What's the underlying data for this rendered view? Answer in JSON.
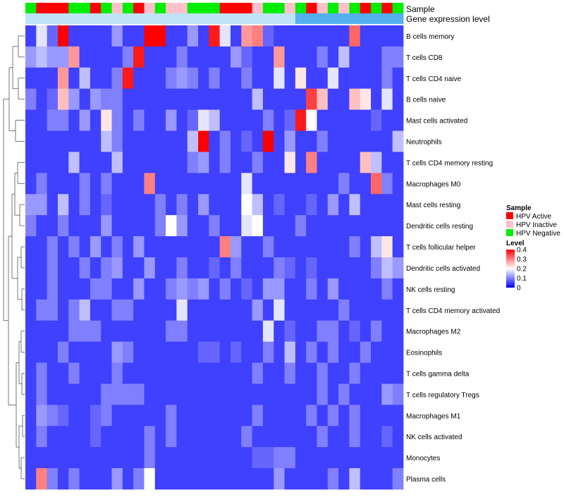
{
  "chart_data": {
    "type": "heatmap",
    "annotation_tracks": [
      "Sample",
      "Gene expression level"
    ],
    "sample_annotation": [
      "N",
      "A",
      "A",
      "A",
      "N",
      "N",
      "A",
      "N",
      "I",
      "N",
      "A",
      "I",
      "N",
      "I",
      "I",
      "N",
      "N",
      "N",
      "A",
      "A",
      "A",
      "I",
      "N",
      "N",
      "I",
      "N",
      "A",
      "I",
      "N",
      "I",
      "N",
      "A",
      "N",
      "A",
      "N"
    ],
    "gene_expression_annotation": [
      "low",
      "low",
      "low",
      "low",
      "low",
      "low",
      "low",
      "low",
      "low",
      "low",
      "low",
      "low",
      "low",
      "low",
      "low",
      "low",
      "low",
      "low",
      "low",
      "low",
      "low",
      "low",
      "low",
      "low",
      "low",
      "high",
      "high",
      "high",
      "high",
      "high",
      "high",
      "high",
      "high",
      "high",
      "high"
    ],
    "rows": [
      "B cells memory",
      "T cells CD8",
      "T cells CD4 naive",
      "B cells naive",
      "Mast cells activated",
      "Neutrophils",
      "T cells CD4 memory resting",
      "Macrophages M0",
      "Mast cells resting",
      "Dendritic cells resting",
      "T cells follicular helper",
      "Dendritic cells activated",
      "NK cells resting",
      "T cells CD4 memory activated",
      "Macrophages M2",
      "Eosinophils",
      "T cells gamma delta",
      "T cells regulatory  Tregs",
      "Macrophages M1",
      "NK cells activated",
      "Monocytes",
      "Plasma cells"
    ],
    "values": [
      [
        0.05,
        0.18,
        0.08,
        0.4,
        0.05,
        0.05,
        0.05,
        0.05,
        0.12,
        0.05,
        0.05,
        0.4,
        0.4,
        0.05,
        0.05,
        0.12,
        0.05,
        0.38,
        0.18,
        0.05,
        0.28,
        0.3,
        0.08,
        0.05,
        0.05,
        0.05,
        0.05,
        0.05,
        0.05,
        0.05,
        0.32,
        0.05,
        0.05,
        0.05,
        0.05
      ],
      [
        0.12,
        0.15,
        0.12,
        0.12,
        0.28,
        0.05,
        0.05,
        0.05,
        0.05,
        0.1,
        0.38,
        0.05,
        0.05,
        0.05,
        0.1,
        0.05,
        0.05,
        0.05,
        0.05,
        0.12,
        0.08,
        0.05,
        0.05,
        0.28,
        0.05,
        0.05,
        0.05,
        0.1,
        0.05,
        0.15,
        0.05,
        0.05,
        0.05,
        0.1,
        0.1
      ],
      [
        0.05,
        0.05,
        0.05,
        0.28,
        0.05,
        0.15,
        0.05,
        0.05,
        0.1,
        0.38,
        0.05,
        0.05,
        0.05,
        0.1,
        0.12,
        0.1,
        0.05,
        0.1,
        0.05,
        0.05,
        0.1,
        0.05,
        0.05,
        0.18,
        0.05,
        0.22,
        0.05,
        0.05,
        0.18,
        0.05,
        0.05,
        0.05,
        0.05,
        0.1,
        0.05
      ],
      [
        0.1,
        0.05,
        0.08,
        0.25,
        0.12,
        0.05,
        0.12,
        0.1,
        0.1,
        0.05,
        0.05,
        0.05,
        0.05,
        0.05,
        0.05,
        0.05,
        0.05,
        0.05,
        0.05,
        0.05,
        0.05,
        0.15,
        0.05,
        0.05,
        0.05,
        0.05,
        0.35,
        0.25,
        0.05,
        0.05,
        0.25,
        0.22,
        0.05,
        0.18,
        0.05
      ],
      [
        0.05,
        0.05,
        0.1,
        0.1,
        0.05,
        0.12,
        0.05,
        0.22,
        0.1,
        0.05,
        0.1,
        0.05,
        0.05,
        0.12,
        0.05,
        0.08,
        0.18,
        0.15,
        0.05,
        0.05,
        0.05,
        0.05,
        0.1,
        0.05,
        0.08,
        0.38,
        0.2,
        0.05,
        0.05,
        0.05,
        0.05,
        0.05,
        0.08,
        0.05,
        0.05
      ],
      [
        0.05,
        0.05,
        0.05,
        0.05,
        0.05,
        0.05,
        0.05,
        0.15,
        0.1,
        0.05,
        0.05,
        0.05,
        0.05,
        0.05,
        0.05,
        0.15,
        0.4,
        0.05,
        0.1,
        0.05,
        0.08,
        0.05,
        0.4,
        0.05,
        0.12,
        0.05,
        0.05,
        0.1,
        0.05,
        0.05,
        0.05,
        0.05,
        0.05,
        0.05,
        0.15
      ],
      [
        0.05,
        0.05,
        0.05,
        0.05,
        0.15,
        0.05,
        0.05,
        0.05,
        0.15,
        0.05,
        0.05,
        0.05,
        0.05,
        0.05,
        0.05,
        0.1,
        0.12,
        0.05,
        0.1,
        0.05,
        0.05,
        0.1,
        0.05,
        0.05,
        0.22,
        0.05,
        0.3,
        0.05,
        0.05,
        0.05,
        0.05,
        0.25,
        0.15,
        0.05,
        0.05
      ],
      [
        0.05,
        0.1,
        0.05,
        0.05,
        0.05,
        0.1,
        0.05,
        0.1,
        0.05,
        0.05,
        0.05,
        0.3,
        0.05,
        0.05,
        0.05,
        0.05,
        0.05,
        0.05,
        0.05,
        0.05,
        0.18,
        0.05,
        0.05,
        0.05,
        0.05,
        0.05,
        0.05,
        0.05,
        0.05,
        0.1,
        0.05,
        0.05,
        0.32,
        0.1,
        0.05
      ],
      [
        0.12,
        0.12,
        0.05,
        0.15,
        0.05,
        0.1,
        0.05,
        0.08,
        0.05,
        0.05,
        0.05,
        0.05,
        0.1,
        0.05,
        0.1,
        0.05,
        0.12,
        0.05,
        0.05,
        0.05,
        0.2,
        0.15,
        0.05,
        0.08,
        0.05,
        0.05,
        0.08,
        0.05,
        0.12,
        0.05,
        0.15,
        0.05,
        0.05,
        0.05,
        0.05
      ],
      [
        0.1,
        0.05,
        0.05,
        0.1,
        0.05,
        0.05,
        0.05,
        0.12,
        0.05,
        0.05,
        0.05,
        0.05,
        0.1,
        0.2,
        0.12,
        0.05,
        0.05,
        0.1,
        0.05,
        0.05,
        0.18,
        0.2,
        0.05,
        0.05,
        0.05,
        0.1,
        0.05,
        0.05,
        0.05,
        0.05,
        0.05,
        0.05,
        0.05,
        0.05,
        0.05
      ],
      [
        0.05,
        0.05,
        0.1,
        0.05,
        0.1,
        0.05,
        0.12,
        0.05,
        0.1,
        0.05,
        0.12,
        0.05,
        0.05,
        0.05,
        0.05,
        0.05,
        0.05,
        0.05,
        0.3,
        0.12,
        0.05,
        0.05,
        0.1,
        0.05,
        0.05,
        0.05,
        0.05,
        0.05,
        0.05,
        0.05,
        0.1,
        0.05,
        0.15,
        0.22,
        0.05
      ],
      [
        0.05,
        0.05,
        0.1,
        0.05,
        0.05,
        0.1,
        0.05,
        0.1,
        0.12,
        0.05,
        0.05,
        0.12,
        0.05,
        0.05,
        0.1,
        0.05,
        0.05,
        0.08,
        0.05,
        0.1,
        0.05,
        0.05,
        0.05,
        0.1,
        0.08,
        0.05,
        0.08,
        0.05,
        0.05,
        0.05,
        0.05,
        0.05,
        0.1,
        0.15,
        0.12
      ],
      [
        0.05,
        0.05,
        0.1,
        0.05,
        0.05,
        0.05,
        0.1,
        0.1,
        0.05,
        0.05,
        0.12,
        0.05,
        0.05,
        0.1,
        0.12,
        0.1,
        0.12,
        0.05,
        0.1,
        0.05,
        0.08,
        0.05,
        0.12,
        0.12,
        0.05,
        0.05,
        0.1,
        0.05,
        0.12,
        0.05,
        0.05,
        0.05,
        0.05,
        0.1,
        0.05
      ],
      [
        0.05,
        0.1,
        0.1,
        0.05,
        0.1,
        0.15,
        0.05,
        0.05,
        0.1,
        0.1,
        0.05,
        0.05,
        0.05,
        0.05,
        0.18,
        0.05,
        0.05,
        0.05,
        0.05,
        0.05,
        0.05,
        0.12,
        0.05,
        0.18,
        0.05,
        0.05,
        0.05,
        0.05,
        0.05,
        0.1,
        0.05,
        0.05,
        0.05,
        0.05,
        0.05
      ],
      [
        0.05,
        0.05,
        0.05,
        0.05,
        0.1,
        0.1,
        0.1,
        0.05,
        0.05,
        0.05,
        0.05,
        0.05,
        0.05,
        0.1,
        0.1,
        0.05,
        0.05,
        0.05,
        0.05,
        0.05,
        0.05,
        0.05,
        0.18,
        0.05,
        0.08,
        0.05,
        0.05,
        0.1,
        0.1,
        0.05,
        0.08,
        0.05,
        0.1,
        0.05,
        0.05
      ],
      [
        0.05,
        0.05,
        0.05,
        0.1,
        0.05,
        0.05,
        0.05,
        0.05,
        0.12,
        0.1,
        0.05,
        0.05,
        0.05,
        0.05,
        0.05,
        0.05,
        0.08,
        0.08,
        0.05,
        0.08,
        0.05,
        0.05,
        0.1,
        0.05,
        0.15,
        0.05,
        0.1,
        0.05,
        0.1,
        0.05,
        0.05,
        0.1,
        0.05,
        0.05,
        0.05
      ],
      [
        0.05,
        0.1,
        0.05,
        0.05,
        0.1,
        0.05,
        0.05,
        0.05,
        0.1,
        0.05,
        0.05,
        0.05,
        0.05,
        0.05,
        0.05,
        0.05,
        0.05,
        0.05,
        0.05,
        0.05,
        0.05,
        0.1,
        0.05,
        0.05,
        0.1,
        0.05,
        0.05,
        0.1,
        0.05,
        0.05,
        0.1,
        0.05,
        0.05,
        0.05,
        0.05
      ],
      [
        0.05,
        0.1,
        0.05,
        0.05,
        0.05,
        0.05,
        0.05,
        0.1,
        0.1,
        0.1,
        0.1,
        0.05,
        0.05,
        0.05,
        0.05,
        0.05,
        0.05,
        0.05,
        0.05,
        0.05,
        0.05,
        0.05,
        0.05,
        0.05,
        0.05,
        0.05,
        0.05,
        0.1,
        0.05,
        0.1,
        0.05,
        0.05,
        0.05,
        0.12,
        0.1
      ],
      [
        0.05,
        0.12,
        0.1,
        0.08,
        0.05,
        0.05,
        0.08,
        0.1,
        0.05,
        0.05,
        0.05,
        0.05,
        0.05,
        0.1,
        0.05,
        0.05,
        0.05,
        0.05,
        0.05,
        0.05,
        0.05,
        0.1,
        0.05,
        0.05,
        0.05,
        0.05,
        0.1,
        0.05,
        0.1,
        0.05,
        0.1,
        0.05,
        0.05,
        0.05,
        0.05
      ],
      [
        0.05,
        0.1,
        0.05,
        0.05,
        0.05,
        0.05,
        0.08,
        0.05,
        0.05,
        0.05,
        0.05,
        0.1,
        0.05,
        0.1,
        0.05,
        0.05,
        0.05,
        0.05,
        0.05,
        0.05,
        0.1,
        0.05,
        0.05,
        0.05,
        0.05,
        0.05,
        0.05,
        0.1,
        0.05,
        0.05,
        0.1,
        0.05,
        0.05,
        0.08,
        0.05
      ],
      [
        0.05,
        0.05,
        0.05,
        0.05,
        0.05,
        0.05,
        0.05,
        0.05,
        0.05,
        0.05,
        0.05,
        0.1,
        0.05,
        0.05,
        0.05,
        0.05,
        0.05,
        0.05,
        0.05,
        0.05,
        0.05,
        0.08,
        0.08,
        0.1,
        0.1,
        0.05,
        0.05,
        0.05,
        0.05,
        0.05,
        0.05,
        0.05,
        0.05,
        0.05,
        0.05
      ],
      [
        0.05,
        0.3,
        0.1,
        0.05,
        0.1,
        0.05,
        0.05,
        0.05,
        0.12,
        0.05,
        0.1,
        0.2,
        0.05,
        0.05,
        0.05,
        0.05,
        0.05,
        0.05,
        0.05,
        0.05,
        0.05,
        0.05,
        0.05,
        0.12,
        0.05,
        0.05,
        0.05,
        0.05,
        0.1,
        0.05,
        0.15,
        0.05,
        0.05,
        0.05,
        0.1
      ]
    ],
    "legend": {
      "sample_title": "Sample",
      "sample_entries": [
        {
          "key": "A",
          "label": "HPV Active",
          "color": "#ff0000"
        },
        {
          "key": "I",
          "label": "HPV Inactive",
          "color": "#ffc0cb"
        },
        {
          "key": "N",
          "label": "HPV Negative",
          "color": "#00ee00"
        }
      ],
      "level_title": "Level",
      "level_ticks": [
        "0.4",
        "0.3",
        "0.2",
        "0.1",
        "0"
      ],
      "level_range": [
        0,
        0.4
      ],
      "level_colors": [
        "#0000ff",
        "#ffffff",
        "#ff0000"
      ]
    },
    "gene_expression_colors": {
      "low": "#bfe4f8",
      "high": "#54b0f0"
    }
  }
}
